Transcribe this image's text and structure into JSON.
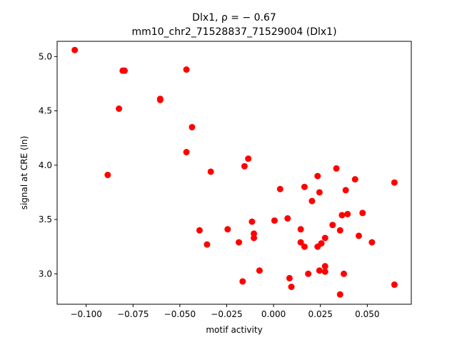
{
  "chart_data": {
    "type": "scatter",
    "title_line1": "Dlx1, ρ = − 0.67",
    "title_line2": "mm10_chr2_71528837_71529004 (Dlx1)",
    "xlabel": "motif activity",
    "ylabel": "signal at CRE (ln)",
    "xlim": [
      -0.1155,
      0.0735
    ],
    "ylim": [
      2.72,
      5.14
    ],
    "xticks": [
      {
        "value": -0.1,
        "label": "−0.100"
      },
      {
        "value": -0.075,
        "label": "−0.075"
      },
      {
        "value": -0.05,
        "label": "−0.050"
      },
      {
        "value": -0.025,
        "label": "−0.025"
      },
      {
        "value": 0.0,
        "label": "0.000"
      },
      {
        "value": 0.025,
        "label": "0.025"
      },
      {
        "value": 0.05,
        "label": "0.050"
      }
    ],
    "yticks": [
      {
        "value": 3.0,
        "label": "3.0"
      },
      {
        "value": 3.5,
        "label": "3.5"
      },
      {
        "value": 4.0,
        "label": "4.0"
      },
      {
        "value": 4.5,
        "label": "4.5"
      },
      {
        "value": 5.0,
        "label": "5.0"
      }
    ],
    "grid": false,
    "marker_color": "#ff0000",
    "points": [
      {
        "x": -0.1061,
        "y": 5.06
      },
      {
        "x": -0.0805,
        "y": 4.87
      },
      {
        "x": -0.0795,
        "y": 4.87
      },
      {
        "x": -0.0465,
        "y": 4.88
      },
      {
        "x": -0.0605,
        "y": 4.61
      },
      {
        "x": -0.0605,
        "y": 4.6
      },
      {
        "x": -0.0825,
        "y": 4.52
      },
      {
        "x": -0.0435,
        "y": 4.35
      },
      {
        "x": -0.0465,
        "y": 4.12
      },
      {
        "x": -0.0885,
        "y": 3.91
      },
      {
        "x": -0.0335,
        "y": 3.94
      },
      {
        "x": -0.0135,
        "y": 4.06
      },
      {
        "x": -0.0155,
        "y": 3.99
      },
      {
        "x": 0.0235,
        "y": 3.9
      },
      {
        "x": 0.0335,
        "y": 3.97
      },
      {
        "x": 0.0435,
        "y": 3.87
      },
      {
        "x": 0.0645,
        "y": 3.84
      },
      {
        "x": 0.0165,
        "y": 3.8
      },
      {
        "x": 0.0035,
        "y": 3.78
      },
      {
        "x": 0.0245,
        "y": 3.75
      },
      {
        "x": 0.0385,
        "y": 3.77
      },
      {
        "x": 0.0205,
        "y": 3.67
      },
      {
        "x": 0.0365,
        "y": 3.54
      },
      {
        "x": 0.0395,
        "y": 3.55
      },
      {
        "x": 0.0475,
        "y": 3.56
      },
      {
        "x": -0.0115,
        "y": 3.48
      },
      {
        "x": 0.0005,
        "y": 3.49
      },
      {
        "x": 0.0075,
        "y": 3.51
      },
      {
        "x": 0.0315,
        "y": 3.45
      },
      {
        "x": 0.0145,
        "y": 3.41
      },
      {
        "x": 0.0355,
        "y": 3.4
      },
      {
        "x": -0.0395,
        "y": 3.4
      },
      {
        "x": -0.0245,
        "y": 3.41
      },
      {
        "x": -0.0105,
        "y": 3.37
      },
      {
        "x": -0.0105,
        "y": 3.33
      },
      {
        "x": 0.0275,
        "y": 3.33
      },
      {
        "x": 0.0455,
        "y": 3.35
      },
      {
        "x": -0.0185,
        "y": 3.29
      },
      {
        "x": -0.0355,
        "y": 3.27
      },
      {
        "x": 0.0145,
        "y": 3.29
      },
      {
        "x": 0.0165,
        "y": 3.25
      },
      {
        "x": 0.0235,
        "y": 3.25
      },
      {
        "x": 0.0255,
        "y": 3.28
      },
      {
        "x": 0.0525,
        "y": 3.29
      },
      {
        "x": -0.0075,
        "y": 3.03
      },
      {
        "x": 0.0245,
        "y": 3.03
      },
      {
        "x": 0.0275,
        "y": 3.07
      },
      {
        "x": 0.0275,
        "y": 3.02
      },
      {
        "x": 0.0185,
        "y": 3.0
      },
      {
        "x": 0.0375,
        "y": 3.0
      },
      {
        "x": 0.0085,
        "y": 2.96
      },
      {
        "x": -0.0165,
        "y": 2.93
      },
      {
        "x": 0.0095,
        "y": 2.88
      },
      {
        "x": 0.0645,
        "y": 2.9
      },
      {
        "x": 0.0355,
        "y": 2.81
      }
    ]
  }
}
